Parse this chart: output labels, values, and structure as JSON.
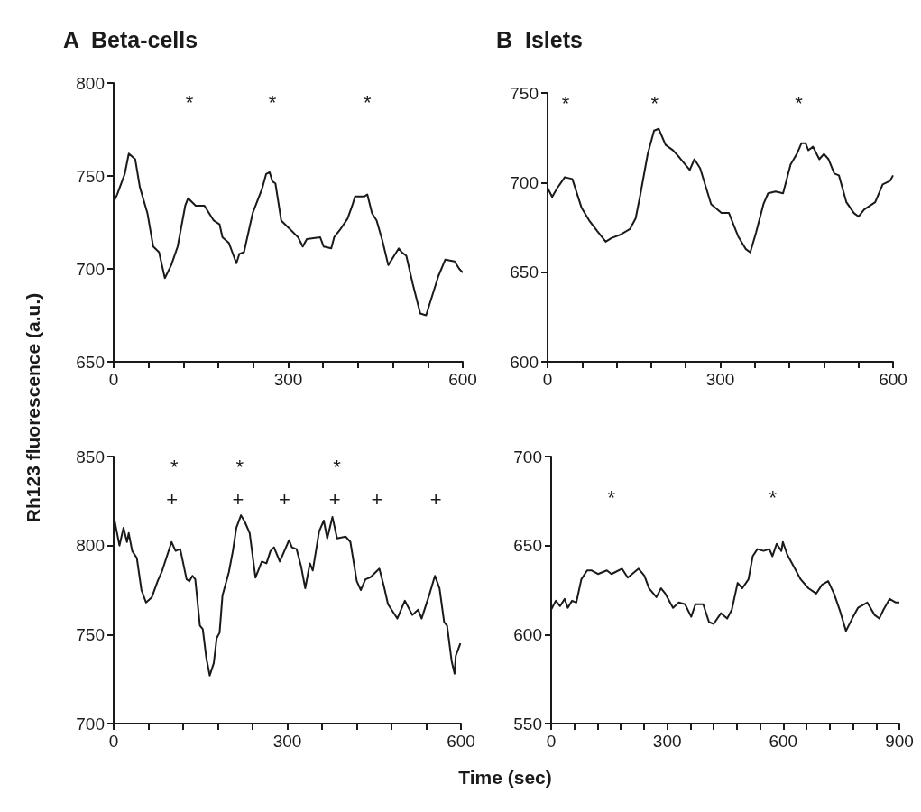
{
  "chart_data": [
    {
      "type": "line",
      "title": "A  Beta-cells",
      "ylabel": "Rh123 fluorescence (a.u.)",
      "color": "#1a1a1a",
      "grid": false,
      "marker": "none",
      "line_style": "solid",
      "xlim": [
        0,
        600
      ],
      "ylim": [
        650,
        800
      ],
      "xticks": [
        0,
        {
          "value": 60,
          "label": null
        },
        {
          "value": 120,
          "label": null
        },
        {
          "value": 180,
          "label": null
        },
        {
          "value": 240,
          "label": null
        },
        300,
        {
          "value": 360,
          "label": null
        },
        {
          "value": 420,
          "label": null
        },
        {
          "value": 480,
          "label": null
        },
        {
          "value": 540,
          "label": null
        },
        600
      ],
      "yticks": [
        650,
        700,
        750,
        800
      ],
      "x": [
        0,
        6,
        19,
        26,
        37,
        45,
        58,
        68,
        78,
        88,
        99,
        110,
        123,
        128,
        141,
        156,
        172,
        182,
        187,
        198,
        205,
        211,
        216,
        224,
        239,
        255,
        262,
        268,
        273,
        278,
        288,
        301,
        317,
        325,
        332,
        355,
        361,
        374,
        379,
        389,
        402,
        410,
        415,
        431,
        436,
        444,
        452,
        462,
        472,
        482,
        490,
        495,
        503,
        514,
        527,
        537,
        545,
        558,
        570,
        586,
        594,
        600
      ],
      "values": [
        736,
        740,
        751,
        762,
        759,
        744,
        730,
        712,
        709,
        695,
        702,
        712,
        734,
        738,
        734,
        734,
        726,
        724,
        717,
        714,
        708,
        703,
        708,
        709,
        730,
        743,
        751,
        752,
        747,
        746,
        726,
        722,
        717,
        712,
        716,
        717,
        712,
        711,
        717,
        721,
        727,
        734,
        739,
        739,
        740,
        730,
        726,
        715,
        702,
        707,
        711,
        709,
        707,
        692,
        676,
        675,
        683,
        696,
        705,
        704,
        700,
        698
      ],
      "annotations": [
        "*",
        "*",
        "*"
      ]
    },
    {
      "type": "line",
      "title": "B  Islets",
      "color": "#1a1a1a",
      "grid": false,
      "marker": "none",
      "line_style": "solid",
      "xlim": [
        0,
        600
      ],
      "ylim": [
        600,
        750
      ],
      "xticks": [
        0,
        {
          "value": 60,
          "label": null
        },
        {
          "value": 120,
          "label": null
        },
        {
          "value": 180,
          "label": null
        },
        {
          "value": 240,
          "label": null
        },
        300,
        {
          "value": 360,
          "label": null
        },
        {
          "value": 420,
          "label": null
        },
        {
          "value": 480,
          "label": null
        },
        {
          "value": 540,
          "label": null
        },
        600
      ],
      "yticks": [
        600,
        650,
        700,
        750
      ],
      "x": [
        0,
        8,
        17,
        30,
        43,
        59,
        72,
        86,
        101,
        111,
        127,
        143,
        153,
        161,
        174,
        185,
        193,
        205,
        218,
        229,
        247,
        255,
        265,
        284,
        302,
        315,
        331,
        344,
        352,
        362,
        375,
        383,
        396,
        409,
        422,
        433,
        441,
        448,
        453,
        461,
        472,
        480,
        488,
        498,
        506,
        519,
        532,
        540,
        550,
        569,
        582,
        595,
        600
      ],
      "values": [
        697,
        692,
        697,
        703,
        702,
        686,
        679,
        673,
        667,
        669,
        671,
        674,
        680,
        693,
        716,
        729,
        730,
        721,
        718,
        714,
        707,
        713,
        708,
        688,
        683,
        683,
        670,
        663,
        661,
        672,
        688,
        694,
        695,
        694,
        710,
        716,
        722,
        722,
        718,
        720,
        713,
        716,
        713,
        705,
        704,
        689,
        683,
        681,
        685,
        689,
        699,
        701,
        704
      ],
      "annotations": [
        "*",
        "*",
        "*"
      ]
    },
    {
      "type": "line",
      "xlabel": "Time (sec)",
      "color": "#1a1a1a",
      "grid": false,
      "marker": "none",
      "line_style": "solid",
      "xlim": [
        0,
        600
      ],
      "ylim": [
        700,
        850
      ],
      "xticks": [
        0,
        {
          "value": 60,
          "label": null
        },
        {
          "value": 120,
          "label": null
        },
        {
          "value": 180,
          "label": null
        },
        {
          "value": 240,
          "label": null
        },
        300,
        {
          "value": 360,
          "label": null
        },
        {
          "value": 420,
          "label": null
        },
        {
          "value": 480,
          "label": null
        },
        {
          "value": 540,
          "label": null
        },
        600
      ],
      "yticks": [
        700,
        750,
        800,
        850
      ],
      "x": [
        0,
        4,
        10,
        17,
        23,
        26,
        32,
        40,
        48,
        56,
        66,
        76,
        84,
        100,
        107,
        115,
        126,
        131,
        136,
        141,
        149,
        154,
        160,
        166,
        173,
        178,
        183,
        188,
        199,
        206,
        212,
        220,
        227,
        235,
        245,
        256,
        264,
        271,
        277,
        287,
        295,
        303,
        308,
        316,
        324,
        331,
        339,
        344,
        355,
        363,
        369,
        378,
        386,
        401,
        409,
        420,
        427,
        435,
        443,
        459,
        467,
        474,
        490,
        503,
        516,
        526,
        532,
        545,
        555,
        563,
        571,
        576,
        584,
        589,
        591,
        599
      ],
      "values": [
        817,
        810,
        800,
        810,
        802,
        807,
        797,
        793,
        775,
        768,
        771,
        780,
        786,
        802,
        797,
        798,
        781,
        780,
        783,
        781,
        755,
        753,
        737,
        727,
        734,
        748,
        751,
        772,
        785,
        797,
        810,
        817,
        813,
        807,
        782,
        791,
        790,
        797,
        799,
        791,
        797,
        803,
        799,
        798,
        788,
        776,
        790,
        786,
        808,
        814,
        804,
        816,
        804,
        805,
        802,
        780,
        775,
        781,
        782,
        787,
        777,
        767,
        759,
        769,
        761,
        764,
        759,
        772,
        783,
        776,
        757,
        755,
        735,
        728,
        738,
        745
      ],
      "annotations": [
        "*",
        "*",
        "*",
        "+",
        "+",
        "+",
        "+",
        "+",
        "+"
      ]
    },
    {
      "type": "line",
      "color": "#1a1a1a",
      "grid": false,
      "marker": "none",
      "line_style": "solid",
      "xlim": [
        0,
        900
      ],
      "ylim": [
        550,
        700
      ],
      "xticks": [
        0,
        {
          "value": 60,
          "label": null
        },
        {
          "value": 120,
          "label": null
        },
        {
          "value": 180,
          "label": null
        },
        {
          "value": 240,
          "label": null
        },
        300,
        {
          "value": 360,
          "label": null
        },
        {
          "value": 420,
          "label": null
        },
        {
          "value": 480,
          "label": null
        },
        {
          "value": 540,
          "label": null
        },
        600,
        {
          "value": 660,
          "label": null
        },
        {
          "value": 720,
          "label": null
        },
        {
          "value": 780,
          "label": null
        },
        {
          "value": 840,
          "label": null
        },
        900
      ],
      "yticks": [
        550,
        600,
        650,
        700
      ],
      "x": [
        0,
        12,
        23,
        35,
        43,
        54,
        65,
        78,
        93,
        105,
        121,
        144,
        156,
        183,
        198,
        226,
        241,
        253,
        272,
        284,
        295,
        315,
        330,
        346,
        362,
        373,
        393,
        408,
        420,
        439,
        455,
        467,
        482,
        494,
        510,
        521,
        533,
        549,
        564,
        572,
        583,
        595,
        599,
        610,
        630,
        645,
        665,
        685,
        700,
        716,
        731,
        747,
        762,
        778,
        793,
        817,
        836,
        848,
        859,
        875,
        891,
        900
      ],
      "values": [
        614,
        619,
        616,
        620,
        615,
        619,
        618,
        631,
        636,
        636,
        634,
        636,
        634,
        637,
        632,
        637,
        633,
        626,
        621,
        626,
        623,
        615,
        618,
        617,
        610,
        617,
        617,
        607,
        606,
        612,
        609,
        614,
        629,
        626,
        631,
        644,
        648,
        647,
        648,
        644,
        651,
        647,
        652,
        645,
        637,
        631,
        626,
        623,
        628,
        630,
        623,
        613,
        602,
        609,
        615,
        618,
        611,
        609,
        614,
        620,
        618,
        618
      ],
      "annotations": [
        "*",
        "*"
      ]
    }
  ]
}
